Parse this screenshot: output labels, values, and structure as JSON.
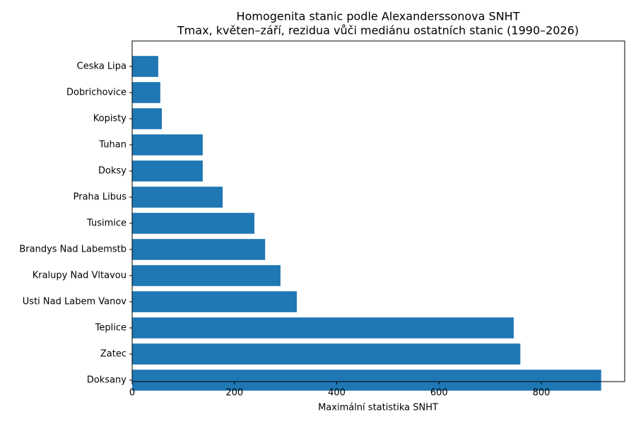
{
  "chart_data": {
    "type": "barh",
    "title": "Homogenita stanic podle Alexanderssonova SNHT",
    "subtitle": "Tmax, květen–září, rezidua vůči mediánu ostatních stanic (1990–2026)",
    "xlabel": "Maximální statistika SNHT",
    "categories": [
      "Ceska Lipa",
      "Dobrichovice",
      "Kopisty",
      "Tuhan",
      "Doksy",
      "Praha Libus",
      "Tusimice",
      "Brandys Nad Labemstb",
      "Kralupy Nad Vltavou",
      "Usti Nad Labem Vanov",
      "Teplice",
      "Zatec",
      "Doksany"
    ],
    "values": [
      51,
      55,
      58,
      138,
      138,
      177,
      239,
      260,
      290,
      322,
      746,
      759,
      917
    ],
    "color": "#1f77b4",
    "xlim": [
      0,
      963
    ],
    "xticks": [
      0,
      200,
      400,
      600,
      800
    ]
  }
}
